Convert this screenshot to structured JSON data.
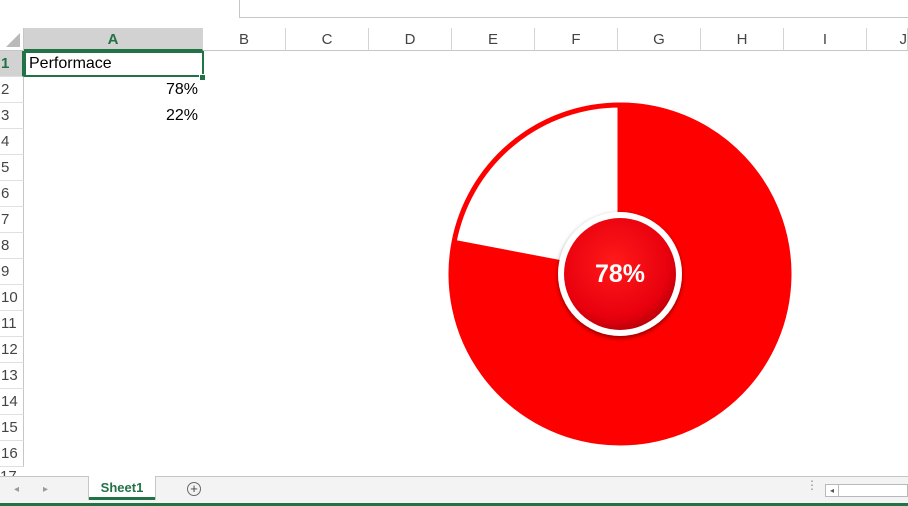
{
  "sheet": {
    "column_headers": [
      "A",
      "B",
      "C",
      "D",
      "E",
      "F",
      "G",
      "H",
      "I",
      "J"
    ],
    "row_headers": [
      "1",
      "2",
      "3",
      "4",
      "5",
      "6",
      "7",
      "8",
      "9",
      "10",
      "11",
      "12",
      "13",
      "14",
      "15",
      "16"
    ],
    "partial_row_header": "17",
    "active_column": "A",
    "active_row": "1",
    "cells": {
      "A1": "Performace",
      "A2": "78%",
      "A3": "22%"
    }
  },
  "chart_data": {
    "type": "pie",
    "categories": [
      "",
      ""
    ],
    "values": [
      78,
      22
    ],
    "center_label": "78%",
    "colors": {
      "filled": "#ff0000",
      "remaining": "#ffffff",
      "outline": "#ff0000",
      "center_fill": "#e8000d",
      "center_ring": "#ffffff",
      "center_text": "#ffffff"
    }
  },
  "bottom_bar": {
    "nav_prev": "◂",
    "nav_next": "▸",
    "active_sheet": "Sheet1",
    "add_sheet": "+",
    "options": "⋮",
    "scroll_left": "◂"
  },
  "theme": {
    "accent": "#217346",
    "grid": "#d4d4d4",
    "header_bg": "#d2d2d2"
  }
}
